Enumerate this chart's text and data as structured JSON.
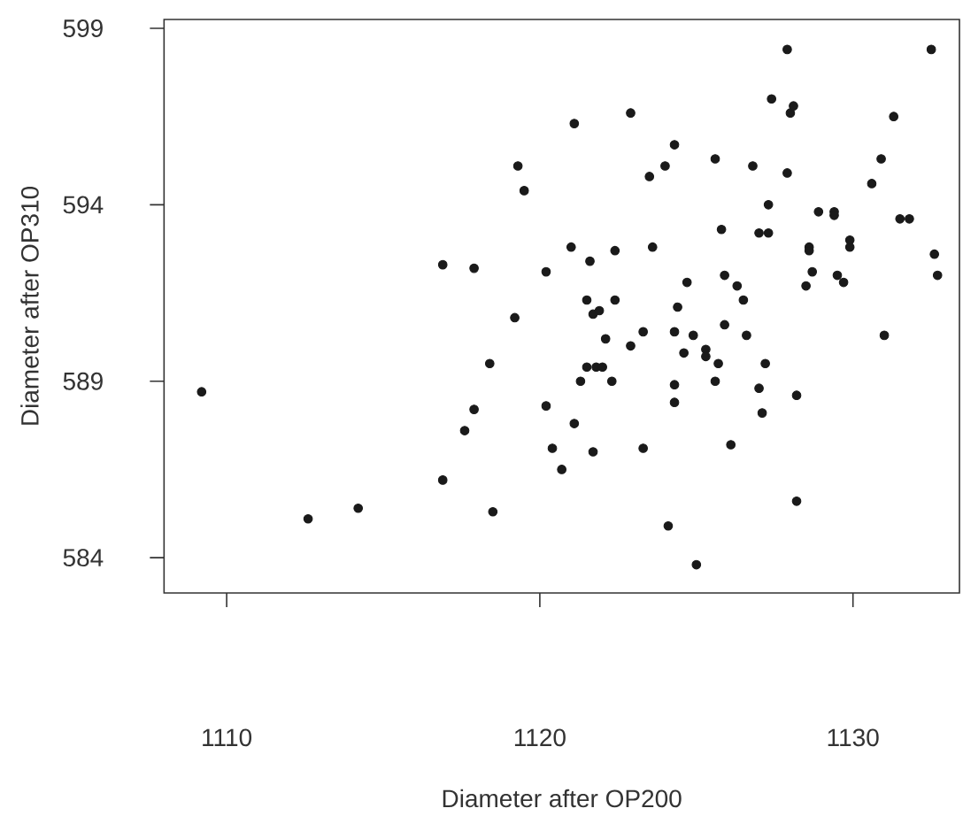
{
  "chart_data": {
    "type": "scatter",
    "xlabel": "Diameter after OP200",
    "ylabel": "Diameter after OP310",
    "x": [
      1109.2,
      1112.6,
      1114.2,
      1116.9,
      1116.9,
      1117.9,
      1117.6,
      1117.9,
      1118.4,
      1118.5,
      1119.2,
      1119.3,
      1119.5,
      1120.2,
      1120.2,
      1120.4,
      1120.7,
      1121.0,
      1121.1,
      1121.1,
      1121.3,
      1121.5,
      1121.5,
      1121.6,
      1121.7,
      1121.8,
      1121.9,
      1122.0,
      1122.1,
      1121.7,
      1122.3,
      1122.4,
      1122.4,
      1122.9,
      1122.9,
      1123.3,
      1123.3,
      1123.5,
      1123.6,
      1124.0,
      1124.1,
      1124.3,
      1124.3,
      1124.3,
      1124.3,
      1124.4,
      1124.6,
      1124.7,
      1124.9,
      1125.0,
      1125.3,
      1125.3,
      1125.6,
      1125.6,
      1125.7,
      1125.8,
      1125.9,
      1125.9,
      1126.1,
      1126.3,
      1126.5,
      1126.6,
      1126.8,
      1127.0,
      1127.0,
      1127.1,
      1127.2,
      1127.3,
      1127.3,
      1127.4,
      1127.9,
      1127.9,
      1128.0,
      1128.1,
      1128.2,
      1128.2,
      1128.5,
      1128.6,
      1128.6,
      1128.7,
      1128.9,
      1129.4,
      1129.4,
      1129.5,
      1129.7,
      1129.9,
      1129.9,
      1130.6,
      1130.9,
      1131.0,
      1131.3,
      1131.5,
      1131.8,
      1132.5,
      1132.6,
      1132.7
    ],
    "values": [
      588.7,
      585.1,
      585.4,
      592.3,
      586.2,
      592.2,
      587.6,
      588.2,
      589.5,
      585.3,
      590.8,
      595.1,
      594.4,
      592.1,
      588.3,
      587.1,
      586.5,
      592.8,
      596.3,
      587.8,
      589.0,
      591.3,
      589.4,
      592.4,
      590.9,
      589.4,
      591.0,
      589.4,
      590.2,
      587.0,
      589.0,
      592.7,
      591.3,
      596.6,
      590.0,
      590.4,
      587.1,
      594.8,
      592.8,
      595.1,
      584.9,
      595.7,
      590.4,
      588.9,
      588.4,
      591.1,
      589.8,
      591.8,
      590.3,
      583.8,
      589.9,
      589.7,
      595.3,
      589.0,
      589.5,
      593.3,
      592.0,
      590.6,
      587.2,
      591.7,
      591.3,
      590.3,
      595.1,
      593.2,
      588.8,
      588.1,
      589.5,
      593.2,
      594.0,
      597.0,
      598.4,
      594.9,
      596.6,
      596.8,
      588.6,
      585.6,
      591.7,
      592.8,
      592.7,
      592.1,
      593.8,
      593.8,
      593.7,
      592.0,
      591.8,
      593.0,
      592.8,
      594.6,
      595.3,
      590.3,
      596.5,
      593.6,
      593.6,
      598.4,
      592.6,
      592.0
    ],
    "color": "#1a1a1a",
    "xlim": [
      1108,
      1133.4
    ],
    "ylim": [
      583,
      599.25
    ],
    "xticks": [
      1110,
      1120,
      1130
    ],
    "yticks": [
      584,
      589,
      594,
      599
    ]
  }
}
